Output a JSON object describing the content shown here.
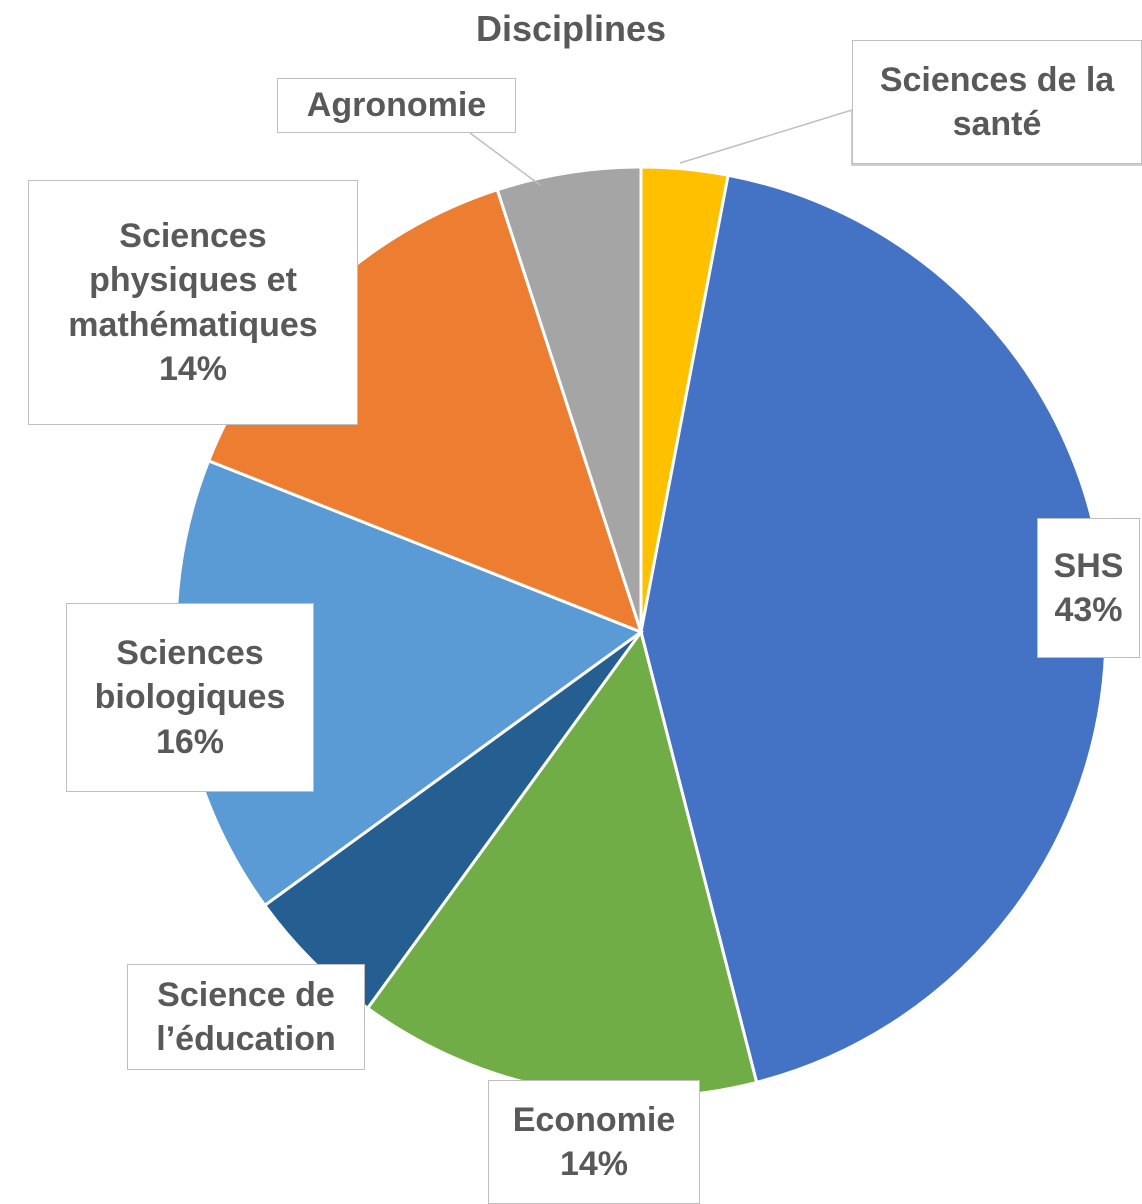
{
  "chart_data": {
    "type": "pie",
    "title": "Disciplines",
    "categories": [
      "Sciences de la santé",
      "SHS",
      "Economie",
      "Science de l’éducation",
      "Sciences biologiques",
      "Sciences physiques et mathématiques",
      "Agronomie"
    ],
    "values": [
      3,
      43,
      14,
      5,
      16,
      14,
      5
    ],
    "value_labels": [
      null,
      "43%",
      "14%",
      null,
      "16%",
      "14%",
      null
    ],
    "colors": [
      "#ffc000",
      "#4472c4",
      "#70ad47",
      "#255e91",
      "#5b9bd5",
      "#ed7d31",
      "#a5a5a5"
    ]
  }
}
